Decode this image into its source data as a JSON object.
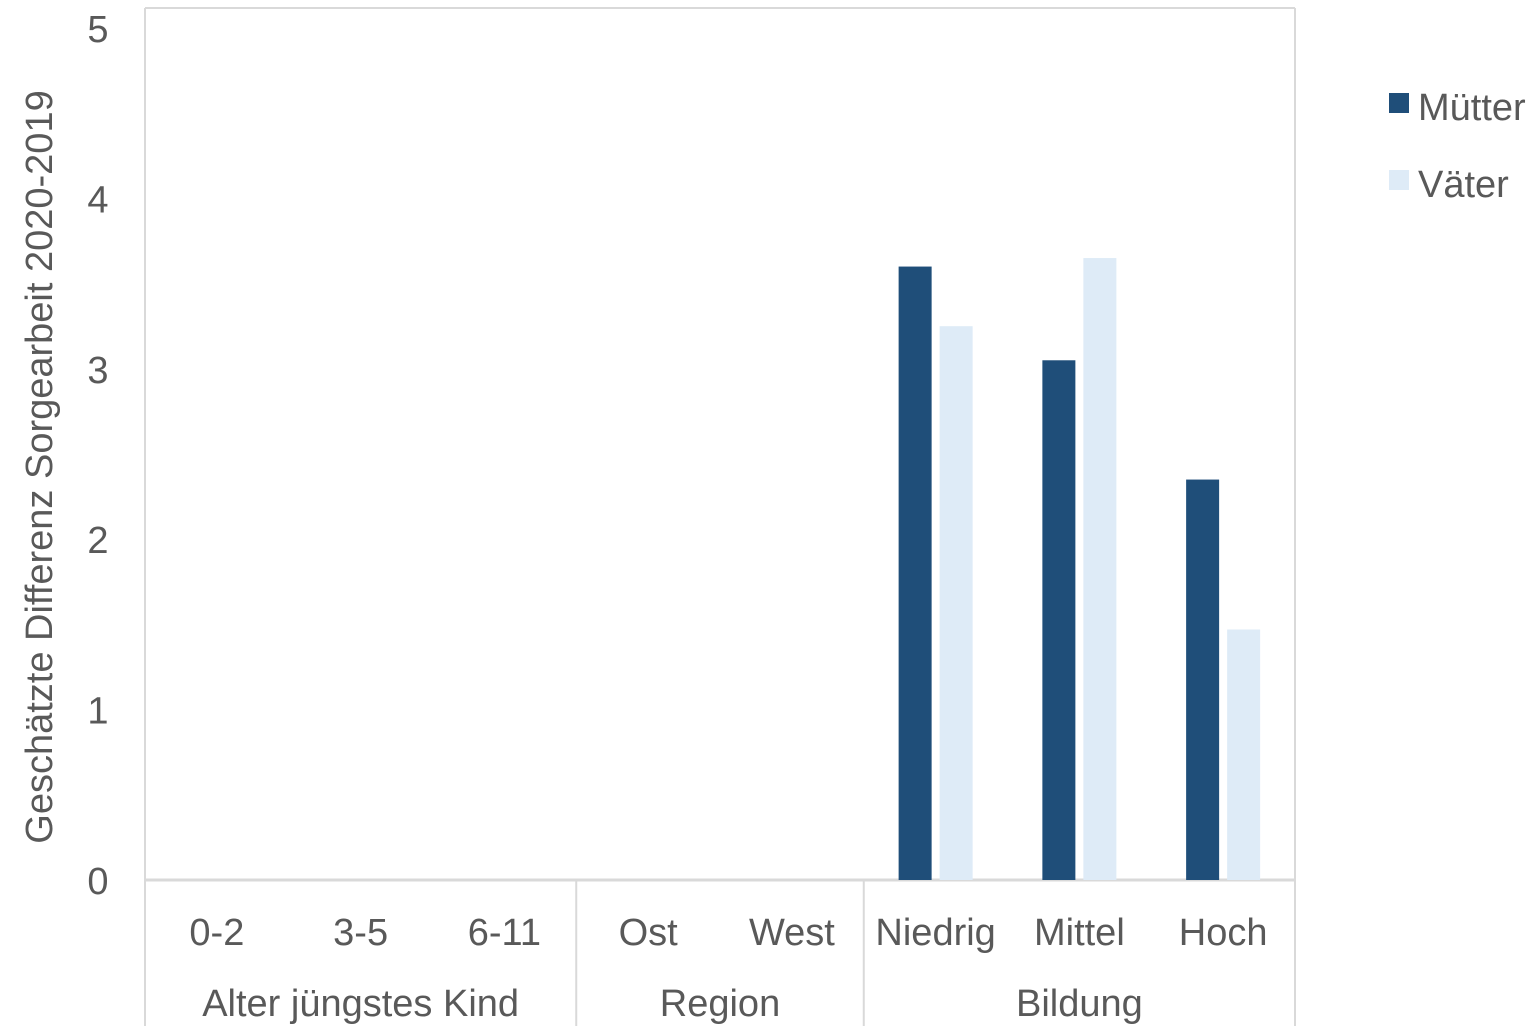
{
  "chart_data": {
    "type": "bar",
    "ylabel": "Geschätzte Differenz Sorgearbeit 2020-2019",
    "ylim": [
      0,
      5
    ],
    "yticks": [
      "0",
      "1",
      "2",
      "3",
      "4",
      "5"
    ],
    "grid": false,
    "legend_position": "top-right",
    "groups": [
      {
        "label": "Alter jüngstes Kind",
        "categories": [
          "0-2",
          "3-5",
          "6-11"
        ]
      },
      {
        "label": "Region",
        "categories": [
          "Ost",
          "West"
        ]
      },
      {
        "label": "Bildung",
        "categories": [
          "Niedrig",
          "Mittel",
          "Hoch"
        ]
      }
    ],
    "categories": [
      "0-2",
      "3-5",
      "6-11",
      "Ost",
      "West",
      "Niedrig",
      "Mittel",
      "Hoch"
    ],
    "series": [
      {
        "name": "Mütter",
        "color": "#1f4e79",
        "values": [
          0,
          0,
          0,
          0,
          0,
          3.6,
          3.05,
          2.35
        ]
      },
      {
        "name": "Väter",
        "color": "#deebf7",
        "values": [
          0,
          0,
          0,
          0,
          0,
          3.25,
          3.65,
          1.47
        ]
      }
    ],
    "axis_color": "#d9d9d9",
    "text_color": "#595959"
  }
}
